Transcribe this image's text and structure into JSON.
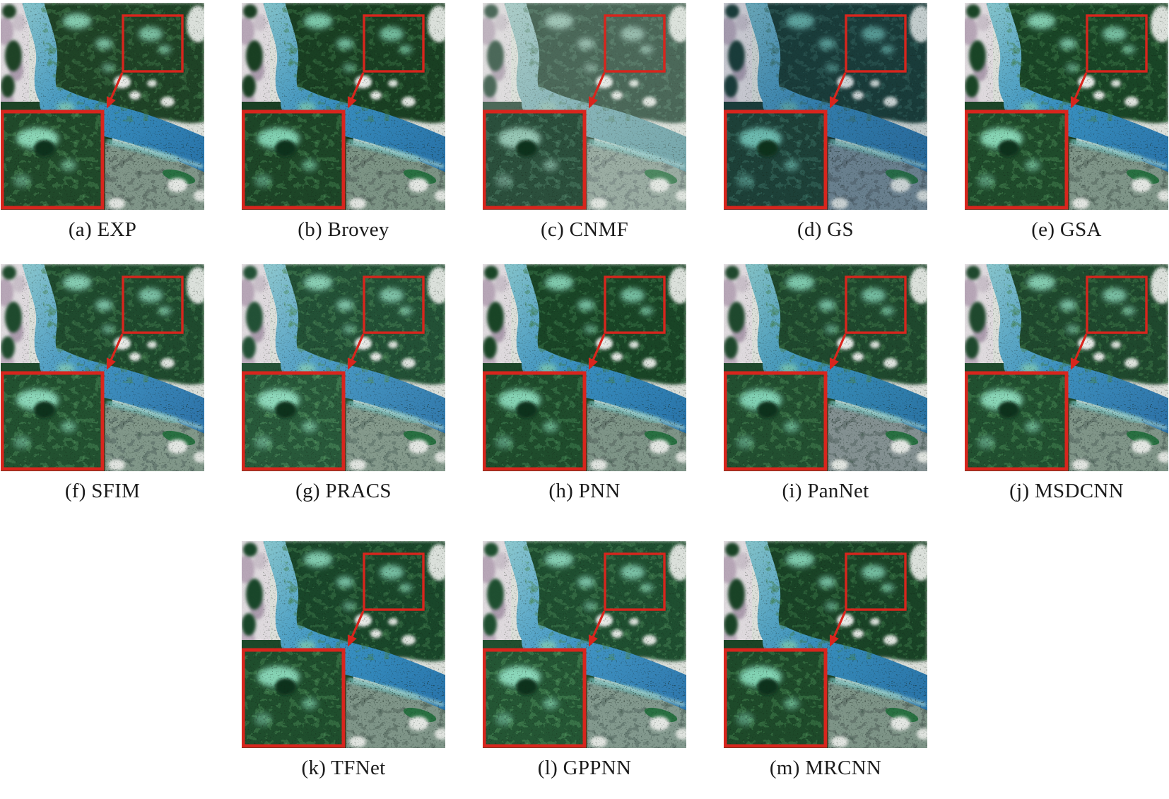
{
  "page": {
    "background": "#ffffff",
    "description": "Visual comparison figure of pansharpening methods on a satellite river scene, each panel with a red region-of-interest box and magnified inset"
  },
  "figure": {
    "annotation_color": "#d8251d",
    "caption_color": "#1b1b1b",
    "island_color": "#2c7a47",
    "shore_highlight_color": "#79c4c0",
    "rows": [
      [
        "a",
        "b",
        "c",
        "d",
        "e"
      ],
      [
        "f",
        "g",
        "h",
        "i",
        "j"
      ],
      [
        "k",
        "l",
        "m"
      ]
    ],
    "panels": [
      {
        "id": "a",
        "method": "EXP",
        "label": "(a) EXP",
        "theme": {
          "river": "#3f9dd0",
          "river_light": "#8fd2dc",
          "river_deep": "#2e80ba",
          "forest": "#20492a",
          "forest_light": "#4c8c57",
          "highlight": "#8fdcbd",
          "mix": "#8ba294",
          "tint": "",
          "tint_opacity": 0
        }
      },
      {
        "id": "b",
        "method": "Brovey",
        "label": "(b) Brovey",
        "theme": {
          "river": "#3e9bcf",
          "river_light": "#8bd0da",
          "river_deep": "#2d7eb8",
          "forest": "#1d4527",
          "forest_light": "#478853",
          "highlight": "#86d8b8",
          "mix": "#87a090",
          "tint": "",
          "tint_opacity": 0
        }
      },
      {
        "id": "c",
        "method": "CNMF",
        "label": "(c) CNMF",
        "theme": {
          "river": "#7db7bf",
          "river_light": "#abd5d2",
          "river_deep": "#66a5ae",
          "forest": "#2b4f3c",
          "forest_light": "#54876c",
          "highlight": "#9cccbb",
          "mix": "#95aba0",
          "tint": "#dfe9e3",
          "tint_opacity": 0.2
        }
      },
      {
        "id": "d",
        "method": "GS",
        "label": "(d) GS",
        "theme": {
          "river": "#3b92c6",
          "river_light": "#7cc2d2",
          "river_deep": "#2e7ab2",
          "forest": "#1d4038",
          "forest_light": "#3c7468",
          "highlight": "#70c0b4",
          "mix": "#7e94a0",
          "tint": "#22456b",
          "tint_opacity": 0.13
        }
      },
      {
        "id": "e",
        "method": "GSA",
        "label": "(e) GSA",
        "theme": {
          "river": "#3f9ed1",
          "river_light": "#8ed3dc",
          "river_deep": "#2f81bb",
          "forest": "#1f4b2b",
          "forest_light": "#4a8b56",
          "highlight": "#8cdcbc",
          "mix": "#8aa294",
          "tint": "",
          "tint_opacity": 0
        }
      },
      {
        "id": "f",
        "method": "SFIM",
        "label": "(f) SFIM",
        "theme": {
          "river": "#47a1d3",
          "river_light": "#93d5de",
          "river_deep": "#337fb9",
          "forest": "#225130",
          "forest_light": "#4f9059",
          "highlight": "#90ddc0",
          "mix": "#8ca495",
          "tint": "",
          "tint_opacity": 0
        }
      },
      {
        "id": "g",
        "method": "PRACS",
        "label": "(g) PRACS",
        "theme": {
          "river": "#50a7d5",
          "river_light": "#98d7e0",
          "river_deep": "#3886bd",
          "forest": "#28593a",
          "forest_light": "#579962",
          "highlight": "#94dfc2",
          "mix": "#90a798",
          "tint": "",
          "tint_opacity": 0
        }
      },
      {
        "id": "h",
        "method": "PNN",
        "label": "(h) PNN",
        "theme": {
          "river": "#3f9cd0",
          "river_light": "#8dd2dc",
          "river_deep": "#2e80ba",
          "forest": "#1f4c2c",
          "forest_light": "#498a55",
          "highlight": "#8adabb",
          "mix": "#89a193",
          "tint": "",
          "tint_opacity": 0
        }
      },
      {
        "id": "i",
        "method": "PanNet",
        "label": "(i) PanNet",
        "theme": {
          "river": "#3e9cc9",
          "river_light": "#8cd0d6",
          "river_deep": "#2f7fb4",
          "forest": "#224f30",
          "forest_light": "#4c8c58",
          "highlight": "#87d8ba",
          "mix": "#8f9d9e",
          "tint": "",
          "tint_opacity": 0
        }
      },
      {
        "id": "j",
        "method": "MSDCNN",
        "label": "(j) MSDCNN",
        "theme": {
          "river": "#45a0d1",
          "river_light": "#91d4dd",
          "river_deep": "#327eb8",
          "forest": "#215030",
          "forest_light": "#4d8e58",
          "highlight": "#8edcbe",
          "mix": "#8ba294",
          "tint": "",
          "tint_opacity": 0
        }
      },
      {
        "id": "k",
        "method": "TFNet",
        "label": "(k) TFNet",
        "theme": {
          "river": "#3fa0d4",
          "river_light": "#8fd4de",
          "river_deep": "#2e81bc",
          "forest": "#1f4e2d",
          "forest_light": "#4a8c57",
          "highlight": "#8bdabc",
          "mix": "#8aa294",
          "tint": "",
          "tint_opacity": 0
        }
      },
      {
        "id": "l",
        "method": "GPPNN",
        "label": "(l) GPPNN",
        "theme": {
          "river": "#49a5d7",
          "river_light": "#95d7e0",
          "river_deep": "#3484be",
          "forest": "#245634",
          "forest_light": "#529560",
          "highlight": "#90dec1",
          "mix": "#8ea69a",
          "tint": "",
          "tint_opacity": 0
        }
      },
      {
        "id": "m",
        "method": "MRCNN",
        "label": "(m) MRCNN",
        "theme": {
          "river": "#3e9ccd",
          "river_light": "#8cd1da",
          "river_deep": "#2e7fb8",
          "forest": "#1e4a2a",
          "forest_light": "#478a54",
          "highlight": "#88dabb",
          "mix": "#89a193",
          "tint": "",
          "tint_opacity": 0
        }
      }
    ]
  }
}
